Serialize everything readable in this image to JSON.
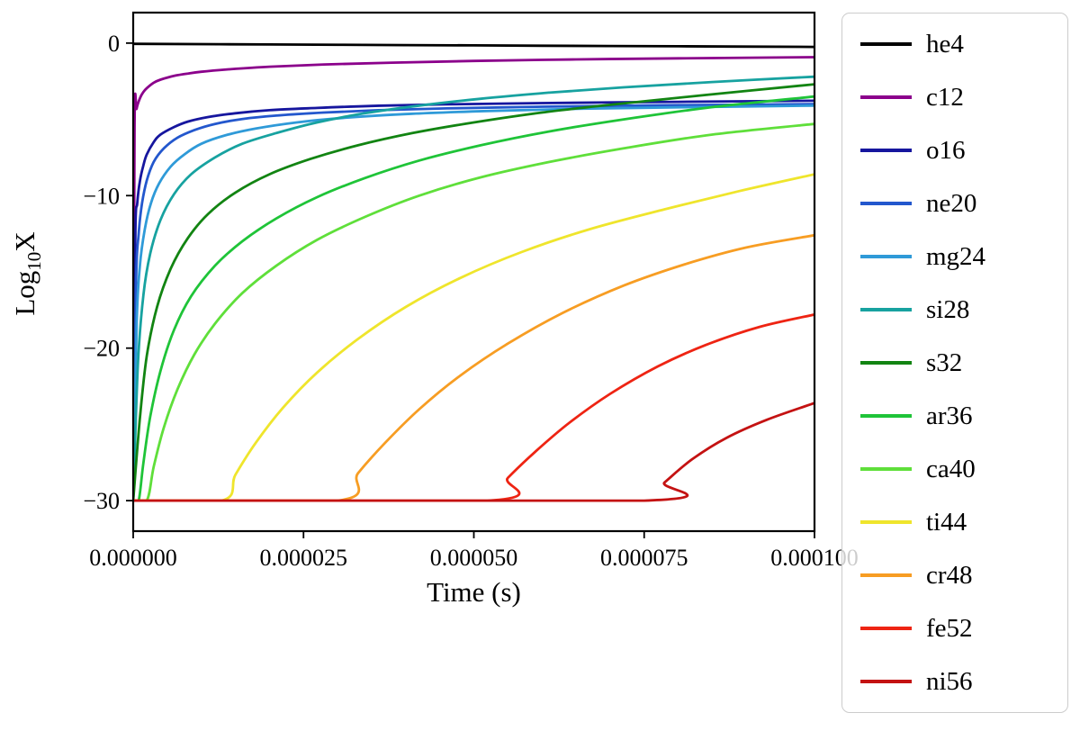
{
  "figure": {
    "background": "#ffffff"
  },
  "chart_data": {
    "type": "line",
    "title": "",
    "xlabel": "Time (s)",
    "ylabel": {
      "pre": "Log",
      "sub": "10",
      "post": "X"
    },
    "xlim": [
      0,
      0.0001
    ],
    "ylim": [
      -32,
      2
    ],
    "grid": false,
    "legend_position": "outside-right",
    "frame_color": "#000000",
    "x_ticks": [
      {
        "value": 0,
        "label": "0.000000"
      },
      {
        "value": 2.5e-05,
        "label": "0.000025"
      },
      {
        "value": 5e-05,
        "label": "0.000050"
      },
      {
        "value": 7.5e-05,
        "label": "0.000075"
      },
      {
        "value": 0.0001,
        "label": "0.000100"
      }
    ],
    "y_ticks": [
      {
        "value": 0,
        "label": "0"
      },
      {
        "value": -10,
        "label": "−10"
      },
      {
        "value": -20,
        "label": "−20"
      },
      {
        "value": -30,
        "label": "−30"
      }
    ],
    "series": [
      {
        "name": "he4",
        "color": "#000000",
        "points": [
          [
            0,
            -0.05
          ],
          [
            2e-05,
            -0.09
          ],
          [
            4e-05,
            -0.13
          ],
          [
            6e-05,
            -0.17
          ],
          [
            8e-05,
            -0.21
          ],
          [
            0.0001,
            -0.25
          ]
        ]
      },
      {
        "name": "c12",
        "color": "#8b008b",
        "points": [
          [
            0,
            -30
          ],
          [
            2e-07,
            -5.5
          ],
          [
            5e-07,
            -4.3
          ],
          [
            1e-06,
            -3.6
          ],
          [
            1.5e-06,
            -3.2
          ],
          [
            2e-06,
            -2.95
          ],
          [
            3e-06,
            -2.6
          ],
          [
            4e-06,
            -2.4
          ],
          [
            6e-06,
            -2.15
          ],
          [
            8e-06,
            -2.0
          ],
          [
            1e-05,
            -1.88
          ],
          [
            1.4e-05,
            -1.72
          ],
          [
            2e-05,
            -1.55
          ],
          [
            2.8e-05,
            -1.4
          ],
          [
            3.8e-05,
            -1.28
          ],
          [
            5e-05,
            -1.17
          ],
          [
            6.5e-05,
            -1.07
          ],
          [
            8e-05,
            -1.0
          ],
          [
            0.0001,
            -0.92
          ]
        ]
      },
      {
        "name": "o16",
        "color": "#16169e",
        "points": [
          [
            0,
            -30
          ],
          [
            3e-07,
            -13
          ],
          [
            6e-07,
            -10.5
          ],
          [
            1e-06,
            -9.0
          ],
          [
            1.5e-06,
            -8.0
          ],
          [
            2e-06,
            -7.3
          ],
          [
            3e-06,
            -6.5
          ],
          [
            4e-06,
            -6.0
          ],
          [
            6e-06,
            -5.5
          ],
          [
            8e-06,
            -5.15
          ],
          [
            1.1e-05,
            -4.85
          ],
          [
            1.5e-05,
            -4.6
          ],
          [
            2e-05,
            -4.4
          ],
          [
            2.7e-05,
            -4.25
          ],
          [
            3.5e-05,
            -4.12
          ],
          [
            4.5e-05,
            -4.02
          ],
          [
            6e-05,
            -3.93
          ],
          [
            8e-05,
            -3.85
          ],
          [
            0.0001,
            -3.78
          ]
        ]
      },
      {
        "name": "ne20",
        "color": "#2357cd",
        "points": [
          [
            0,
            -30
          ],
          [
            4e-07,
            -16
          ],
          [
            8e-07,
            -12.5
          ],
          [
            1.3e-06,
            -10.5
          ],
          [
            2e-06,
            -9.0
          ],
          [
            3e-06,
            -7.8
          ],
          [
            4.5e-06,
            -6.9
          ],
          [
            6.5e-06,
            -6.2
          ],
          [
            9e-06,
            -5.7
          ],
          [
            1.2e-05,
            -5.3
          ],
          [
            1.6e-05,
            -4.98
          ],
          [
            2.1e-05,
            -4.75
          ],
          [
            2.8e-05,
            -4.55
          ],
          [
            3.6e-05,
            -4.4
          ],
          [
            4.6e-05,
            -4.28
          ],
          [
            6e-05,
            -4.17
          ],
          [
            8e-05,
            -4.07
          ],
          [
            0.0001,
            -4.0
          ]
        ]
      },
      {
        "name": "mg24",
        "color": "#2f9ad8",
        "points": [
          [
            0,
            -30
          ],
          [
            5e-07,
            -18.5
          ],
          [
            1e-06,
            -14.5
          ],
          [
            1.7e-06,
            -12.2
          ],
          [
            2.6e-06,
            -10.5
          ],
          [
            3.8e-06,
            -9.2
          ],
          [
            5.5e-06,
            -8.1
          ],
          [
            7.5e-06,
            -7.3
          ],
          [
            1e-05,
            -6.6
          ],
          [
            1.35e-05,
            -6.05
          ],
          [
            1.8e-05,
            -5.6
          ],
          [
            2.4e-05,
            -5.2
          ],
          [
            3.1e-05,
            -4.9
          ],
          [
            4e-05,
            -4.65
          ],
          [
            5.2e-05,
            -4.45
          ],
          [
            6.6e-05,
            -4.3
          ],
          [
            8.2e-05,
            -4.2
          ],
          [
            0.0001,
            -4.1
          ]
        ]
      },
      {
        "name": "si28",
        "color": "#17a2a0",
        "points": [
          [
            0,
            -30
          ],
          [
            7e-07,
            -21
          ],
          [
            1.5e-06,
            -16.5
          ],
          [
            2.5e-06,
            -13.8
          ],
          [
            4e-06,
            -11.6
          ],
          [
            6e-06,
            -9.9
          ],
          [
            8.5e-06,
            -8.6
          ],
          [
            1.2e-05,
            -7.5
          ],
          [
            1.6e-05,
            -6.6
          ],
          [
            2.1e-05,
            -5.9
          ],
          [
            2.7e-05,
            -5.2
          ],
          [
            3.4e-05,
            -4.6
          ],
          [
            4.2e-05,
            -4.1
          ],
          [
            5.1e-05,
            -3.65
          ],
          [
            6.1e-05,
            -3.25
          ],
          [
            7.2e-05,
            -2.9
          ],
          [
            8.5e-05,
            -2.55
          ],
          [
            0.0001,
            -2.2
          ]
        ]
      },
      {
        "name": "s32",
        "color": "#128412",
        "points": [
          [
            0,
            -30
          ],
          [
            1e-06,
            -24.5
          ],
          [
            2e-06,
            -20.5
          ],
          [
            3.5e-06,
            -17.3
          ],
          [
            5.5e-06,
            -14.8
          ],
          [
            8e-06,
            -12.8
          ],
          [
            1.1e-05,
            -11.2
          ],
          [
            1.5e-05,
            -9.8
          ],
          [
            2e-05,
            -8.6
          ],
          [
            2.6e-05,
            -7.6
          ],
          [
            3.3e-05,
            -6.7
          ],
          [
            4.1e-05,
            -5.9
          ],
          [
            5e-05,
            -5.2
          ],
          [
            6e-05,
            -4.55
          ],
          [
            7.1e-05,
            -4.0
          ],
          [
            8.4e-05,
            -3.4
          ],
          [
            0.0001,
            -2.7
          ]
        ]
      },
      {
        "name": "ar36",
        "color": "#1fc438",
        "points": [
          [
            0,
            -30
          ],
          [
            8e-07,
            -30
          ],
          [
            1.5e-06,
            -27.5
          ],
          [
            2.5e-06,
            -24.5
          ],
          [
            4e-06,
            -21.5
          ],
          [
            6e-06,
            -18.8
          ],
          [
            8.5e-06,
            -16.6
          ],
          [
            1.2e-05,
            -14.6
          ],
          [
            1.6e-05,
            -13.0
          ],
          [
            2.1e-05,
            -11.5
          ],
          [
            2.7e-05,
            -10.1
          ],
          [
            3.4e-05,
            -8.85
          ],
          [
            4.2e-05,
            -7.7
          ],
          [
            5.1e-05,
            -6.7
          ],
          [
            6.1e-05,
            -5.8
          ],
          [
            7.2e-05,
            -5.0
          ],
          [
            8.5e-05,
            -4.2
          ],
          [
            0.0001,
            -3.5
          ]
        ]
      },
      {
        "name": "ca40",
        "color": "#5fdf3a",
        "points": [
          [
            0,
            -30
          ],
          [
            2e-06,
            -30
          ],
          [
            3e-06,
            -27.8
          ],
          [
            4.5e-06,
            -25.2
          ],
          [
            6.5e-06,
            -22.7
          ],
          [
            9e-06,
            -20.4
          ],
          [
            1.2e-05,
            -18.4
          ],
          [
            1.6e-05,
            -16.4
          ],
          [
            2.1e-05,
            -14.6
          ],
          [
            2.7e-05,
            -12.9
          ],
          [
            3.4e-05,
            -11.4
          ],
          [
            4.2e-05,
            -10.0
          ],
          [
            5.1e-05,
            -8.8
          ],
          [
            6.1e-05,
            -7.8
          ],
          [
            7.2e-05,
            -6.9
          ],
          [
            8.5e-05,
            -6.0
          ],
          [
            0.0001,
            -5.3
          ]
        ]
      },
      {
        "name": "ti44",
        "color": "#efe52c",
        "points": [
          [
            0,
            -30
          ],
          [
            1.3e-05,
            -30
          ],
          [
            1.5e-05,
            -28.3
          ],
          [
            1.8e-05,
            -26.2
          ],
          [
            2.2e-05,
            -23.9
          ],
          [
            2.7e-05,
            -21.6
          ],
          [
            3.3e-05,
            -19.4
          ],
          [
            4e-05,
            -17.3
          ],
          [
            4.8e-05,
            -15.4
          ],
          [
            5.7e-05,
            -13.7
          ],
          [
            6.7e-05,
            -12.2
          ],
          [
            7.8e-05,
            -10.9
          ],
          [
            8.9e-05,
            -9.7
          ],
          [
            0.0001,
            -8.6
          ]
        ]
      },
      {
        "name": "cr48",
        "color": "#f79d23",
        "points": [
          [
            0,
            -30
          ],
          [
            3e-05,
            -30
          ],
          [
            3.3e-05,
            -28.2
          ],
          [
            3.7e-05,
            -26.2
          ],
          [
            4.2e-05,
            -24.0
          ],
          [
            4.8e-05,
            -21.8
          ],
          [
            5.5e-05,
            -19.7
          ],
          [
            6.3e-05,
            -17.7
          ],
          [
            7.2e-05,
            -15.9
          ],
          [
            8.1e-05,
            -14.5
          ],
          [
            9e-05,
            -13.4
          ],
          [
            0.0001,
            -12.6
          ]
        ]
      },
      {
        "name": "fe52",
        "color": "#ee2413",
        "points": [
          [
            0,
            -30
          ],
          [
            5.2e-05,
            -30
          ],
          [
            5.5e-05,
            -28.5
          ],
          [
            5.9e-05,
            -26.8
          ],
          [
            6.4e-05,
            -24.9
          ],
          [
            7e-05,
            -23.0
          ],
          [
            7.7e-05,
            -21.2
          ],
          [
            8.4e-05,
            -19.8
          ],
          [
            9.2e-05,
            -18.6
          ],
          [
            0.0001,
            -17.8
          ]
        ]
      },
      {
        "name": "ni56",
        "color": "#c41212",
        "points": [
          [
            0,
            -30
          ],
          [
            7.5e-05,
            -30
          ],
          [
            7.8e-05,
            -28.8
          ],
          [
            8.2e-05,
            -27.3
          ],
          [
            8.7e-05,
            -25.9
          ],
          [
            9.3e-05,
            -24.7
          ],
          [
            0.0001,
            -23.6
          ]
        ]
      }
    ]
  }
}
